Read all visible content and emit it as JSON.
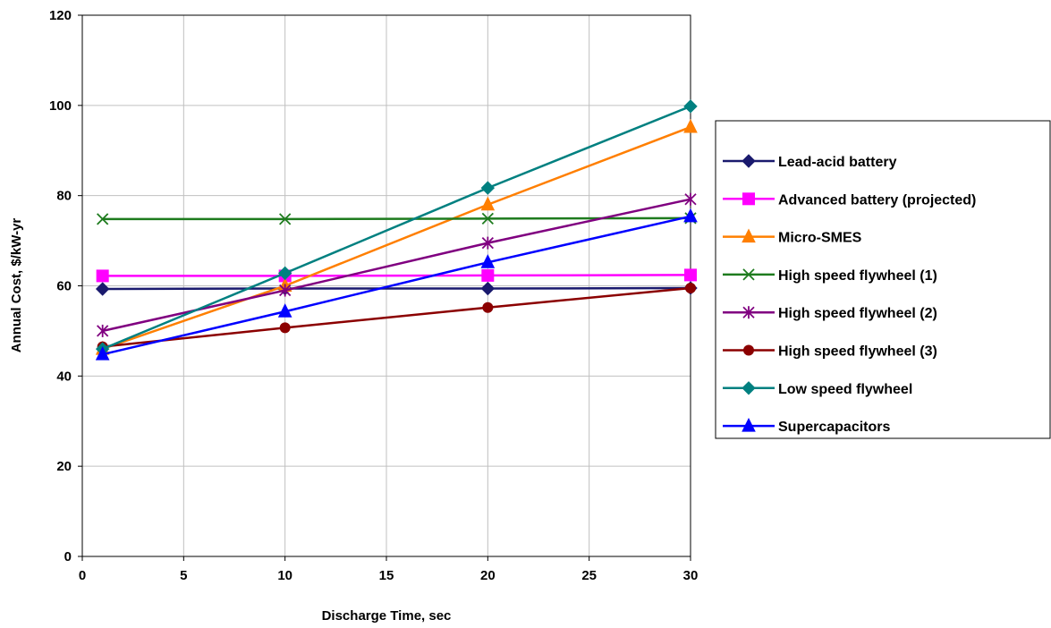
{
  "chart_data": {
    "type": "line",
    "title": "",
    "xlabel": "Discharge Time, sec",
    "ylabel": "Annual Cost, $/kW-yr",
    "xlim": [
      0,
      30
    ],
    "ylim": [
      0,
      120
    ],
    "xticks": [
      0,
      5,
      10,
      15,
      20,
      25,
      30
    ],
    "yticks": [
      0,
      20,
      40,
      60,
      80,
      100,
      120
    ],
    "x": [
      1,
      10,
      20,
      30
    ],
    "grid": true,
    "legend_position": "right",
    "series": [
      {
        "name": "Lead-acid battery",
        "values": [
          59.3,
          59.4,
          59.4,
          59.5
        ],
        "color": "#1a1a6e",
        "marker": "diamond"
      },
      {
        "name": "Advanced battery (projected)",
        "values": [
          62.2,
          62.2,
          62.3,
          62.4
        ],
        "color": "#ff00ff",
        "marker": "square"
      },
      {
        "name": "Micro-SMES",
        "values": [
          46.0,
          60.0,
          78.0,
          95.2
        ],
        "color": "#ff7f00",
        "marker": "triangle"
      },
      {
        "name": "High speed flywheel (1)",
        "values": [
          74.8,
          74.8,
          74.9,
          75.0
        ],
        "color": "#1e7b1e",
        "marker": "x"
      },
      {
        "name": "High speed flywheel (2)",
        "values": [
          50.0,
          59.0,
          69.5,
          79.2
        ],
        "color": "#800080",
        "marker": "star"
      },
      {
        "name": "High speed flywheel (3)",
        "values": [
          46.5,
          50.7,
          55.2,
          59.5
        ],
        "color": "#8b0000",
        "marker": "circle"
      },
      {
        "name": "Low speed flywheel",
        "values": [
          46.0,
          62.8,
          81.7,
          99.8
        ],
        "color": "#008080",
        "marker": "diamond"
      },
      {
        "name": "Supercapacitors",
        "values": [
          44.8,
          54.3,
          65.2,
          75.4
        ],
        "color": "#0000ff",
        "marker": "triangle"
      }
    ]
  }
}
